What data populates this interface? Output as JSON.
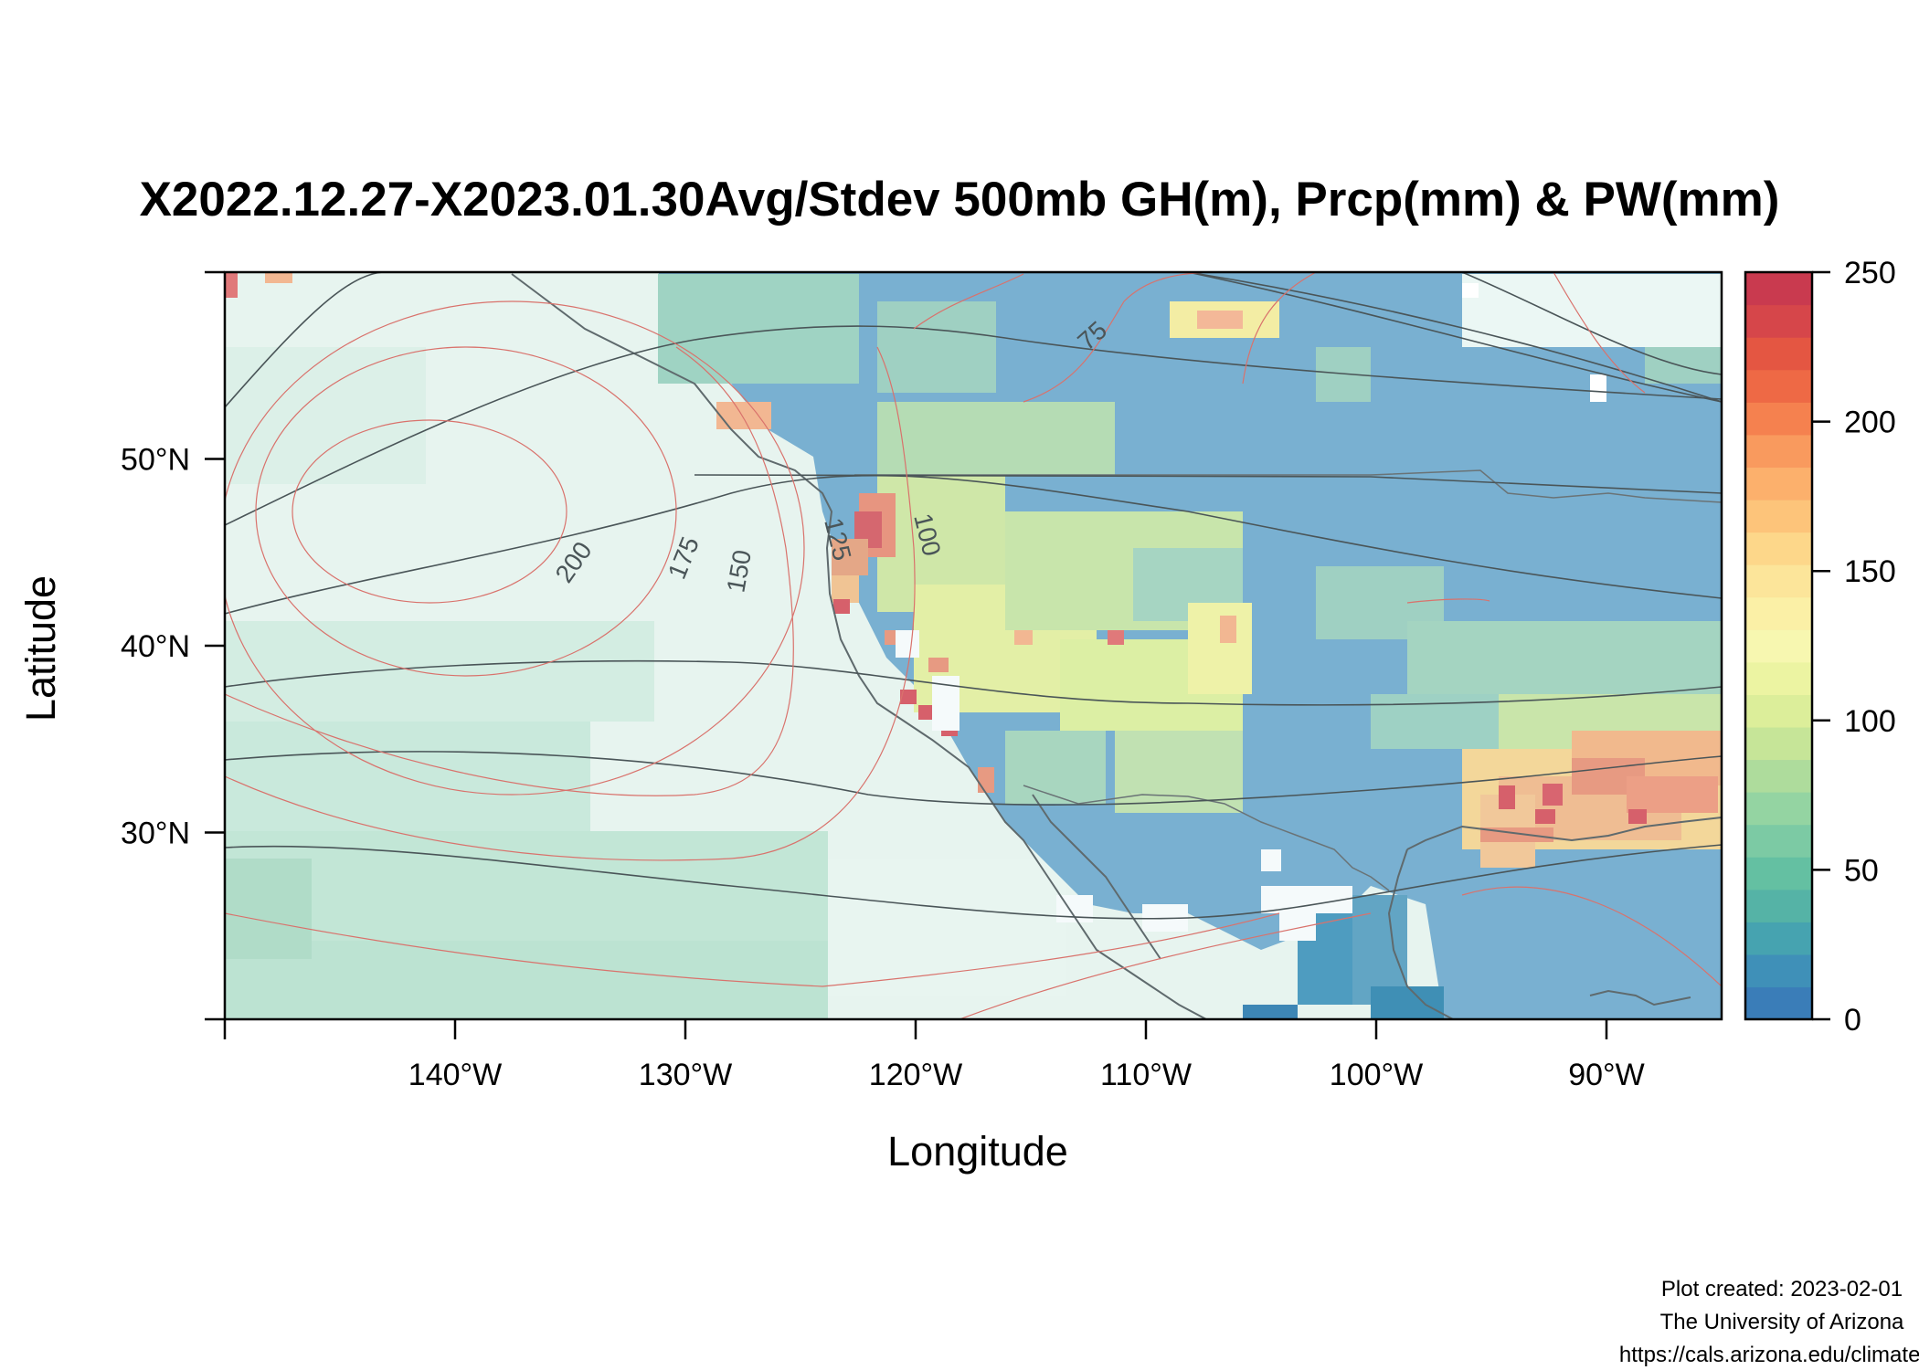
{
  "title": "X2022.12.27-X2023.01.30Avg/Stdev 500mb GH(m), Prcp(mm) & PW(mm)",
  "axes": {
    "xlabel": "Longitude",
    "ylabel": "Latitude",
    "x_ticks": [
      "140°W",
      "130°W",
      "120°W",
      "110°W",
      "100°W",
      "90°W"
    ],
    "x_tick_values": [
      -140,
      -130,
      -120,
      -110,
      -100,
      -90
    ],
    "y_ticks": [
      "30°N",
      "40°N",
      "50°N"
    ],
    "y_tick_values": [
      30,
      40,
      50
    ],
    "xlim": [
      -150,
      -85
    ],
    "ylim": [
      20,
      60
    ]
  },
  "colorbar": {
    "ticks": [
      "0",
      "50",
      "100",
      "150",
      "200",
      "250"
    ],
    "range": [
      0,
      250
    ],
    "colors": [
      "#3a7db8",
      "#3f90b8",
      "#46a3b0",
      "#55b3a6",
      "#64c0a2",
      "#7ccaa4",
      "#94d4a2",
      "#aedc9c",
      "#c6e598",
      "#dcee9a",
      "#ecf4a2",
      "#f7f7b0",
      "#fbf0a6",
      "#fce59a",
      "#fdd78a",
      "#fdc47a",
      "#fcb06c",
      "#f99a5e",
      "#f5814f",
      "#ee6945",
      "#e45642",
      "#d6464a",
      "#c93a4f"
    ]
  },
  "contours": {
    "pw_labels": [
      "200",
      "175",
      "150",
      "125",
      "100",
      "75"
    ],
    "pw_color": "#d9726c",
    "gh_color": "#4a5558"
  },
  "credits": {
    "line1": "Plot created: 2023-02-01",
    "line2": "The University of Arizona",
    "line3": "https://cals.arizona.edu/climate/"
  }
}
